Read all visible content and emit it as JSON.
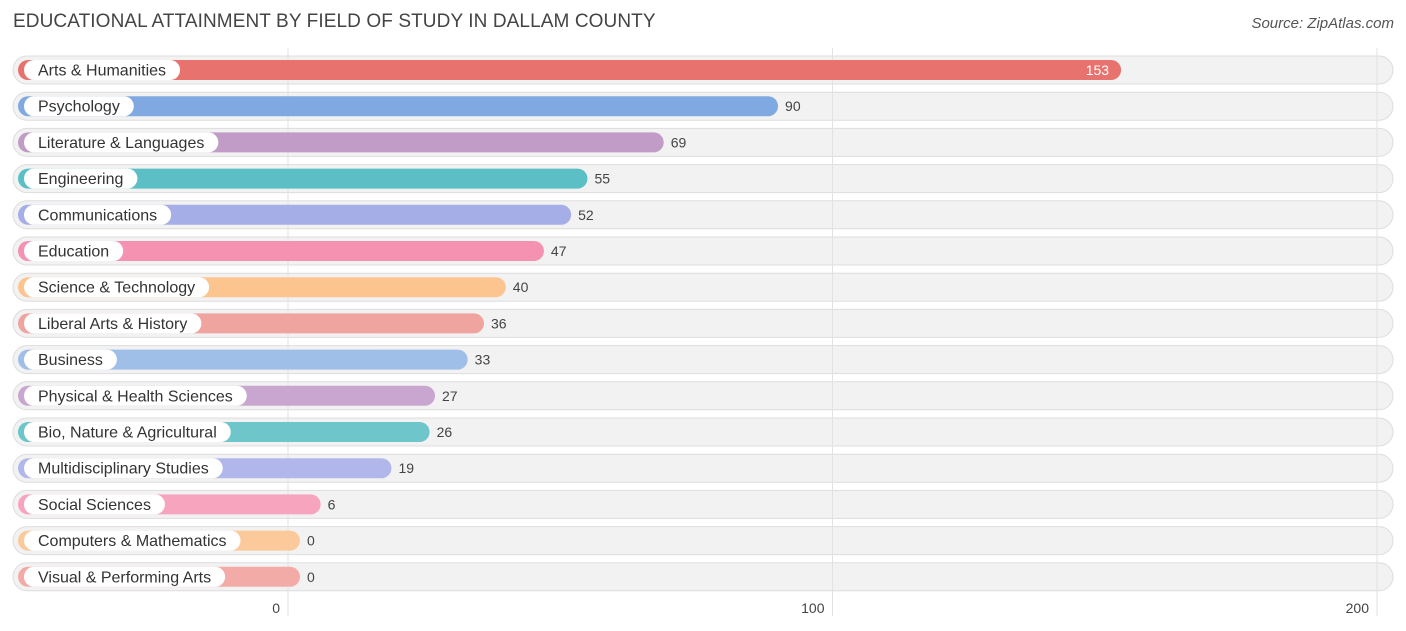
{
  "header": {
    "title": "EDUCATIONAL ATTAINMENT BY FIELD OF STUDY IN DALLAM COUNTY",
    "source": "Source: ZipAtlas.com"
  },
  "chart_data": {
    "type": "bar",
    "orientation": "horizontal",
    "title": "EDUCATIONAL ATTAINMENT BY FIELD OF STUDY IN DALLAM COUNTY",
    "categories": [
      "Arts & Humanities",
      "Psychology",
      "Literature & Languages",
      "Engineering",
      "Communications",
      "Education",
      "Science & Technology",
      "Liberal Arts & History",
      "Business",
      "Physical & Health Sciences",
      "Bio, Nature & Agricultural",
      "Multidisciplinary Studies",
      "Social Sciences",
      "Computers & Mathematics",
      "Visual & Performing Arts"
    ],
    "values": [
      153,
      90,
      69,
      55,
      52,
      47,
      40,
      36,
      33,
      27,
      26,
      19,
      6,
      0,
      0
    ],
    "colors": [
      "#e8736e",
      "#7fa9e0",
      "#c09cc6",
      "#5cbfc6",
      "#a5aee6",
      "#f592b2",
      "#fcc48e",
      "#f0a4a0",
      "#9fbfe8",
      "#c9a6cf",
      "#6ec6ca",
      "#b1b7ea",
      "#f7a5bf",
      "#fcc99a",
      "#f3aba8"
    ],
    "xticks": [
      0,
      100,
      200
    ],
    "xlim": [
      0,
      200
    ],
    "xlabel": "",
    "ylabel": "",
    "grid": true
  }
}
